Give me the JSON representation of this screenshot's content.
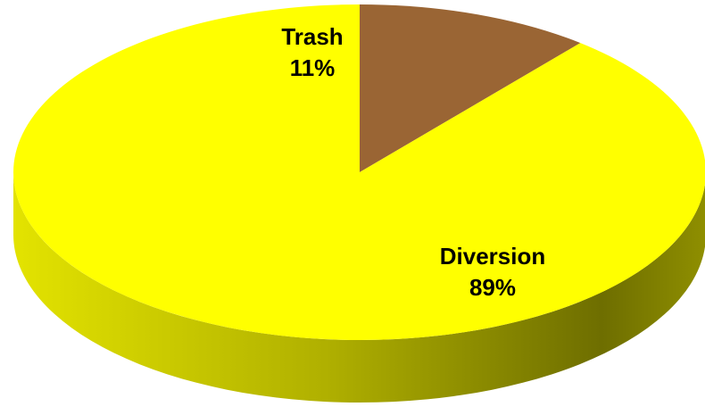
{
  "chart_data": {
    "type": "pie",
    "style": "3d",
    "slices": [
      {
        "label": "Trash",
        "value": 11,
        "value_label": "11%",
        "color": "#9A6534",
        "side_color": "#6B4422"
      },
      {
        "label": "Diversion",
        "value": 89,
        "value_label": "89%",
        "color": "#FFFF00",
        "side_color": "#C9C900"
      }
    ]
  }
}
